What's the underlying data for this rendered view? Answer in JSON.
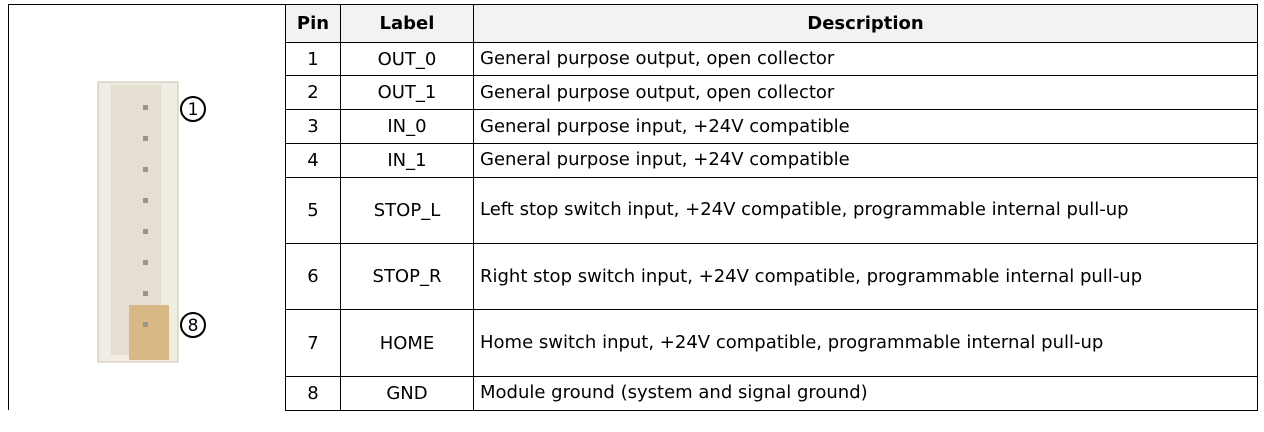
{
  "connector": {
    "pin_labels": [
      "1",
      "8"
    ]
  },
  "table": {
    "headers": [
      "Pin",
      "Label",
      "Description"
    ],
    "rows": [
      [
        "1",
        "OUT_0",
        "General purpose output, open collector"
      ],
      [
        "2",
        "OUT_1",
        "General purpose output, open collector"
      ],
      [
        "3",
        "IN_0",
        "General purpose input, +24V compatible"
      ],
      [
        "4",
        "IN_1",
        "General purpose input, +24V compatible"
      ],
      [
        "5",
        "STOP_L",
        "Left stop switch input, +24V compatible, programmable internal pull-up"
      ],
      [
        "6",
        "STOP_R",
        "Right stop switch input, +24V compatible, programmable internal pull-up"
      ],
      [
        "7",
        "HOME",
        "Home switch input, +24V compatible, programmable internal pull-up"
      ],
      [
        "8",
        "GND",
        "Module ground (system and signal ground)"
      ]
    ]
  }
}
